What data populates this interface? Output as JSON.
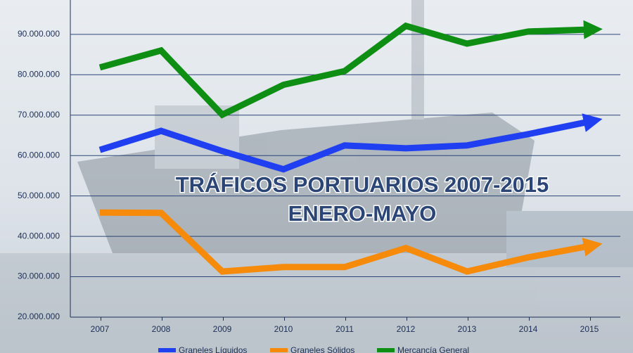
{
  "chart_data": {
    "type": "line",
    "title": "TRÁFICOS PORTUARIOS 2007-2015",
    "subtitle": "ENERO-MAYO",
    "categories": [
      "2007",
      "2008",
      "2009",
      "2010",
      "2011",
      "2012",
      "2013",
      "2014",
      "2015"
    ],
    "series": [
      {
        "name": "Graneles Líquidos",
        "color": "#1f3ff0",
        "values": [
          61400000,
          66100000,
          61100000,
          56600000,
          62500000,
          61800000,
          62500000,
          65300000,
          68400000
        ]
      },
      {
        "name": "Graneles Sólidos",
        "color": "#f58a0b",
        "values": [
          45900000,
          45800000,
          31300000,
          32400000,
          32400000,
          37100000,
          31300000,
          34800000,
          37600000
        ]
      },
      {
        "name": "Mercancía General",
        "color": "#0e8f14",
        "values": [
          81800000,
          86000000,
          70100000,
          77500000,
          80900000,
          92100000,
          87700000,
          90700000,
          91200000
        ]
      }
    ],
    "ylim": [
      20000000,
      98500000
    ],
    "yticks": [
      {
        "value": 20000000,
        "label": "20.000.000"
      },
      {
        "value": 30000000,
        "label": "30.000.000"
      },
      {
        "value": 40000000,
        "label": "40.000.000"
      },
      {
        "value": 50000000,
        "label": "50.000.000"
      },
      {
        "value": 60000000,
        "label": "60.000.000"
      },
      {
        "value": 70000000,
        "label": "70.000.000"
      },
      {
        "value": 80000000,
        "label": "80.000.000"
      },
      {
        "value": 90000000,
        "label": "90.000.000"
      }
    ],
    "grid": true,
    "legend": "bottom"
  }
}
